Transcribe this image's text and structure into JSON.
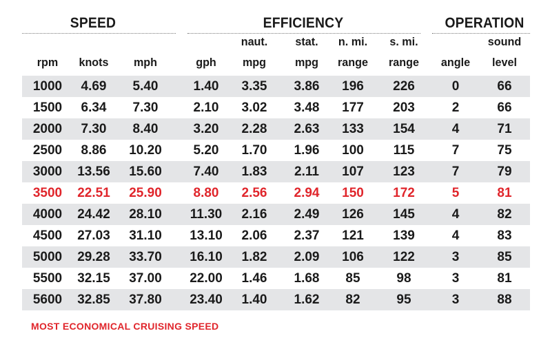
{
  "groups": {
    "speed": "SPEED",
    "efficiency": "EFFICIENCY",
    "operation": "OPERATION"
  },
  "columns": [
    {
      "line1": "",
      "line2": "rpm"
    },
    {
      "line1": "",
      "line2": "knots"
    },
    {
      "line1": "",
      "line2": "mph"
    },
    {
      "line1": "",
      "line2": "gph"
    },
    {
      "line1": "naut.",
      "line2": "mpg"
    },
    {
      "line1": "stat.",
      "line2": "mpg"
    },
    {
      "line1": "n. mi.",
      "line2": "range"
    },
    {
      "line1": "s. mi.",
      "line2": "range"
    },
    {
      "line1": "",
      "line2": "angle"
    },
    {
      "line1": "sound",
      "line2": "level"
    }
  ],
  "chart_data": {
    "type": "table",
    "rows": [
      [
        "1000",
        "4.69",
        "5.40",
        "1.40",
        "3.35",
        "3.86",
        "196",
        "226",
        "0",
        "66"
      ],
      [
        "1500",
        "6.34",
        "7.30",
        "2.10",
        "3.02",
        "3.48",
        "177",
        "203",
        "2",
        "66"
      ],
      [
        "2000",
        "7.30",
        "8.40",
        "3.20",
        "2.28",
        "2.63",
        "133",
        "154",
        "4",
        "71"
      ],
      [
        "2500",
        "8.86",
        "10.20",
        "5.20",
        "1.70",
        "1.96",
        "100",
        "115",
        "7",
        "75"
      ],
      [
        "3000",
        "13.56",
        "15.60",
        "7.40",
        "1.83",
        "2.11",
        "107",
        "123",
        "7",
        "79"
      ],
      [
        "3500",
        "22.51",
        "25.90",
        "8.80",
        "2.56",
        "2.94",
        "150",
        "172",
        "5",
        "81"
      ],
      [
        "4000",
        "24.42",
        "28.10",
        "11.30",
        "2.16",
        "2.49",
        "126",
        "145",
        "4",
        "82"
      ],
      [
        "4500",
        "27.03",
        "31.10",
        "13.10",
        "2.06",
        "2.37",
        "121",
        "139",
        "4",
        "83"
      ],
      [
        "5000",
        "29.28",
        "33.70",
        "16.10",
        "1.82",
        "2.09",
        "106",
        "122",
        "3",
        "85"
      ],
      [
        "5500",
        "32.15",
        "37.00",
        "22.00",
        "1.46",
        "1.68",
        "85",
        "98",
        "3",
        "81"
      ],
      [
        "5600",
        "32.85",
        "37.80",
        "23.40",
        "1.40",
        "1.62",
        "82",
        "95",
        "3",
        "88"
      ]
    ],
    "highlight_row": 5,
    "highlight_color": "#e0252b"
  },
  "footnote": "MOST ECONOMICAL CRUISING SPEED",
  "colors": {
    "shade": "#e4e5e7",
    "text": "#1a1a1a",
    "highlight": "#e0252b"
  }
}
